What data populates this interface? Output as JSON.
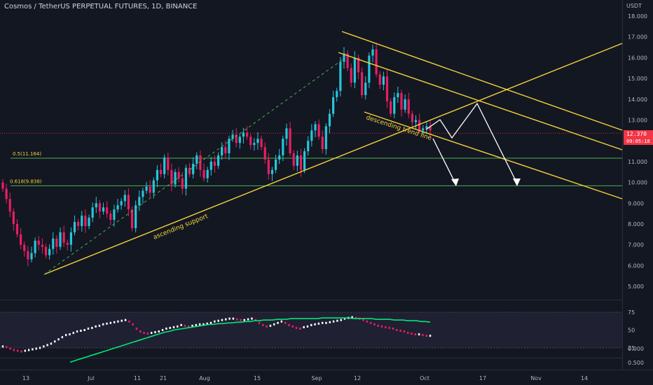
{
  "header": {
    "title": "Cosmos / TetherUS PERPETUAL FUTURES, 1D, BINANCE",
    "unit": "USDT"
  },
  "last_price": {
    "value": "12.370",
    "countdown": "09:05:18"
  },
  "colors": {
    "background": "#131722",
    "up": "#26c6da",
    "down": "#e91e63",
    "trendline": "#f5d33a",
    "fib": "#4caf50",
    "rsi_ma": "#00e676",
    "arrow": "#ffffff",
    "price_tag": "#f23645"
  },
  "chart_data": {
    "type": "candlestick",
    "title": "Cosmos / TetherUS PERPETUAL FUTURES, 1D, BINANCE",
    "ylim": [
      4.0,
      18.5
    ],
    "y_ticks": [
      "18.000",
      "17.000",
      "16.000",
      "15.000",
      "14.000",
      "13.000",
      "12.000",
      "11.000",
      "10.000",
      "9.000",
      "8.000",
      "7.000",
      "6.000",
      "5.000"
    ],
    "x_ticks": [
      "13",
      "Jul",
      "11",
      "21",
      "Aug",
      "15",
      "Sep",
      "12",
      "Oct",
      "17",
      "Nov",
      "14"
    ],
    "close_series": [
      9.7,
      9.2,
      8.6,
      8.0,
      7.5,
      7.0,
      6.7,
      6.3,
      6.6,
      7.2,
      7.0,
      6.9,
      6.5,
      6.8,
      7.3,
      6.9,
      7.6,
      7.1,
      7.0,
      7.6,
      8.1,
      7.9,
      8.4,
      7.9,
      8.3,
      8.8,
      9.0,
      8.6,
      8.8,
      8.5,
      8.2,
      8.7,
      8.9,
      9.1,
      9.4,
      8.7,
      7.8,
      8.9,
      9.3,
      9.6,
      9.8,
      9.5,
      10.1,
      10.6,
      10.4,
      11.2,
      10.6,
      9.9,
      10.5,
      10.2,
      9.7,
      10.7,
      10.4,
      10.9,
      11.3,
      10.6,
      10.2,
      10.6,
      11.0,
      10.8,
      11.3,
      11.7,
      11.4,
      12.1,
      12.3,
      11.9,
      12.2,
      12.4,
      12.2,
      11.8,
      11.9,
      12.1,
      11.7,
      11.1,
      10.4,
      10.6,
      11.1,
      11.3,
      12.1,
      12.6,
      11.4,
      10.8,
      11.3,
      10.6,
      11.5,
      12.0,
      12.5,
      12.8,
      12.2,
      11.6,
      12.7,
      13.3,
      14.1,
      14.4,
      15.8,
      16.2,
      15.5,
      14.8,
      16.0,
      15.3,
      14.2,
      14.8,
      16.1,
      16.4,
      15.2,
      14.7,
      15.1,
      13.9,
      13.3,
      14.1,
      14.3,
      13.5,
      14.0,
      13.3,
      12.9,
      13.0,
      12.5,
      12.6,
      12.7,
      12.5
    ],
    "fib_levels": [
      {
        "ratio": 0.5,
        "value": 11.164,
        "label": "0.5(11.164)"
      },
      {
        "ratio": 0.618,
        "value": 9.838,
        "label": "0.618(9.838)"
      }
    ],
    "annotations": [
      {
        "text": "ascending support",
        "color": "#f5d33a"
      },
      {
        "text": "descending trend line",
        "color": "#f5d33a"
      }
    ],
    "rsi": {
      "y_ticks": [
        "75",
        "50",
        "25"
      ],
      "band": [
        25,
        75
      ],
      "values": [
        27,
        26,
        24,
        22,
        21,
        20,
        21,
        22,
        23,
        24,
        25,
        27,
        29,
        31,
        34,
        37,
        40,
        43,
        44,
        46,
        48,
        49,
        50,
        52,
        53,
        55,
        56,
        58,
        59,
        60,
        61,
        62,
        63,
        64,
        62,
        58,
        52,
        48,
        46,
        45,
        46,
        47,
        48,
        50,
        52,
        53,
        54,
        55,
        57,
        56,
        55,
        56,
        57,
        58,
        58,
        59,
        60,
        62,
        63,
        64,
        65,
        66,
        66,
        65,
        64,
        64,
        65,
        66,
        64,
        60,
        57,
        55,
        56,
        58,
        60,
        62,
        60,
        57,
        55,
        53,
        52,
        54,
        55,
        57,
        58,
        59,
        60,
        60,
        61,
        62,
        63,
        64,
        66,
        67,
        68,
        67,
        66,
        64,
        62,
        60,
        58,
        56,
        55,
        54,
        53,
        52,
        50,
        49,
        48,
        46,
        45,
        44,
        44,
        43,
        42,
        42
      ],
      "ma": [
        5,
        7,
        9,
        11,
        13,
        15,
        17,
        19,
        21,
        23,
        25,
        27,
        29,
        31,
        33,
        35,
        37,
        39,
        41,
        43,
        45,
        47,
        48,
        50,
        51,
        52,
        53,
        54,
        55,
        56,
        57,
        58,
        58,
        59,
        59,
        60,
        60,
        61,
        61,
        62,
        62,
        63,
        63,
        64,
        64,
        64,
        65,
        65,
        65,
        66,
        66,
        66,
        66,
        66,
        66,
        66,
        67,
        67,
        67,
        67,
        67,
        67,
        67,
        66,
        66,
        66,
        66,
        66,
        65,
        65,
        65,
        65,
        64,
        64,
        64,
        63,
        63,
        63,
        62,
        62,
        61
      ]
    },
    "macd_y_ticks": [
      "0.000",
      "0.500"
    ]
  }
}
